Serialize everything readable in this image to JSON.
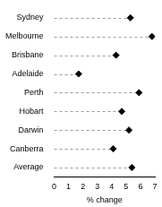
{
  "chart_data": {
    "type": "dot",
    "orientation": "horizontal",
    "categories": [
      "Sydney",
      "Melbourne",
      "Brisbane",
      "Adelaide",
      "Perth",
      "Hobart",
      "Darwin",
      "Canberra",
      "Average"
    ],
    "values": [
      5.3,
      6.8,
      4.3,
      1.7,
      5.9,
      4.7,
      5.2,
      4.1,
      5.4
    ],
    "color": "#000000",
    "marker": "diamond",
    "line_style": "dashed",
    "x_label": "% change",
    "xlim": [
      0,
      7
    ],
    "xticks": [
      0,
      1,
      2,
      3,
      4,
      5,
      6,
      7
    ],
    "grid": false
  }
}
